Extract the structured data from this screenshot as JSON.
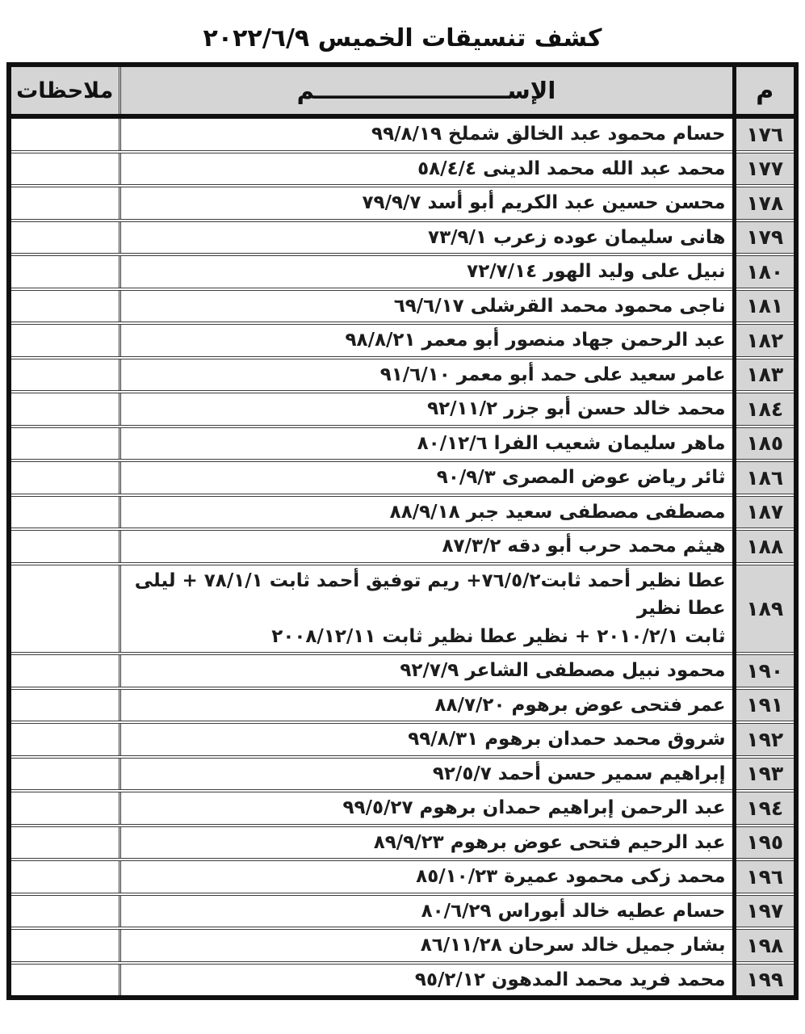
{
  "page": {
    "title": "كشف تنسيقات الخميس ٢٠٢٢/٦/٩"
  },
  "colors": {
    "shaded_bg": "#d5d5d5",
    "border": "#101010",
    "text": "#1c1c1c",
    "page_bg": "#ffffff"
  },
  "table": {
    "headers": {
      "number": "م",
      "name": "الإســــــــــــــــــــــــم",
      "notes": "ملاحظات"
    },
    "rows": [
      {
        "number": "١٧٦",
        "name": "حسام محمود عبد الخالق شملخ ٩٩/٨/١٩",
        "notes": ""
      },
      {
        "number": "١٧٧",
        "name": "محمد عبد الله محمد الدينى ٥٨/٤/٤",
        "notes": ""
      },
      {
        "number": "١٧٨",
        "name": "محسن حسين عبد الكريم أبو أسد ٧٩/٩/٧",
        "notes": ""
      },
      {
        "number": "١٧٩",
        "name": "هانى سليمان عوده زعرب ٧٣/٩/١",
        "notes": ""
      },
      {
        "number": "١٨٠",
        "name": "نبيل على وليد الهور ٧٢/٧/١٤",
        "notes": ""
      },
      {
        "number": "١٨١",
        "name": "ناجى محمود محمد القرشلى ٦٩/٦/١٧",
        "notes": ""
      },
      {
        "number": "١٨٢",
        "name": "عبد الرحمن جهاد منصور أبو معمر ٩٨/٨/٢١",
        "notes": ""
      },
      {
        "number": "١٨٣",
        "name": "عامر سعيد على حمد أبو معمر ٩١/٦/١٠",
        "notes": ""
      },
      {
        "number": "١٨٤",
        "name": "محمد خالد حسن أبو جزر ٩٢/١١/٢",
        "notes": ""
      },
      {
        "number": "١٨٥",
        "name": "ماهر سليمان شعيب الفرا ٨٠/١٢/٦",
        "notes": ""
      },
      {
        "number": "١٨٦",
        "name": "ثائر رياض عوض المصرى ٩٠/٩/٣",
        "notes": ""
      },
      {
        "number": "١٨٧",
        "name": "مصطفى مصطفى سعيد جبر ٨٨/٩/١٨",
        "notes": ""
      },
      {
        "number": "١٨٨",
        "name": "هيثم محمد حرب أبو دقه ٨٧/٣/٢",
        "notes": ""
      },
      {
        "number": "١٨٩",
        "name": "عطا نظير أحمد ثابت٧٦/٥/٢+ ريم توفيق أحمد ثابت ٧٨/١/١ + ليلى عطا نظير\nثابت ٢٠١٠/٢/١ + نظير عطا نظير ثابت ٢٠٠٨/١٢/١١",
        "notes": ""
      },
      {
        "number": "١٩٠",
        "name": "محمود نبيل مصطفى الشاعر ٩٢/٧/٩",
        "notes": ""
      },
      {
        "number": "١٩١",
        "name": "عمر فتحى عوض برهوم ٨٨/٧/٢٠",
        "notes": ""
      },
      {
        "number": "١٩٢",
        "name": "شروق محمد حمدان برهوم ٩٩/٨/٣١",
        "notes": ""
      },
      {
        "number": "١٩٣",
        "name": "إبراهيم سمير حسن أحمد ٩٢/٥/٧",
        "notes": ""
      },
      {
        "number": "١٩٤",
        "name": "عبد الرحمن إبراهيم حمدان برهوم ٩٩/٥/٢٧",
        "notes": ""
      },
      {
        "number": "١٩٥",
        "name": "عبد الرحيم فتحى عوض برهوم ٨٩/٩/٢٣",
        "notes": ""
      },
      {
        "number": "١٩٦",
        "name": "محمد زكى محمود عميرة ٨٥/١٠/٢٣",
        "notes": ""
      },
      {
        "number": "١٩٧",
        "name": "حسام عطيه خالد أبوراس ٨٠/٦/٢٩",
        "notes": ""
      },
      {
        "number": "١٩٨",
        "name": "بشار جميل خالد سرحان ٨٦/١١/٢٨",
        "notes": ""
      },
      {
        "number": "١٩٩",
        "name": "محمد فريد محمد المدهون ٩٥/٢/١٢",
        "notes": ""
      }
    ]
  }
}
